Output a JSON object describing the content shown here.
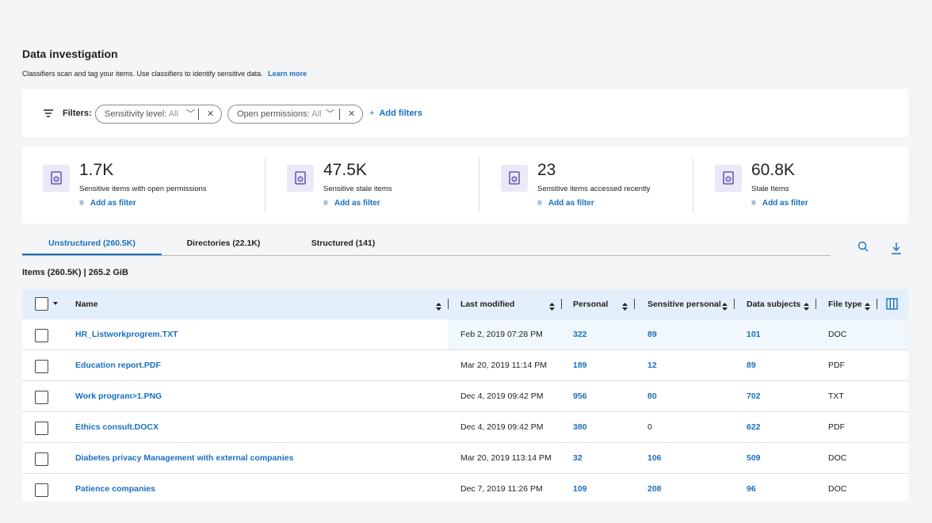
{
  "header": {
    "title": "Data investigation",
    "subtitle": "Classifiers scan and tag your items. Use classifiers to identify sensitive data.",
    "link": "Learn more"
  },
  "filters": {
    "label": "Filters:",
    "chips": [
      {
        "label": "Sensitivity level:",
        "value": "All"
      },
      {
        "label": "Open permissions:",
        "value": "All"
      }
    ],
    "add": "Add filters"
  },
  "stats": [
    {
      "value": "1.7K",
      "label": "Sensitive items with open permissions",
      "action": "Add as filter"
    },
    {
      "value": "47.5K",
      "label": "Sensitive stale items",
      "action": "Add as filter"
    },
    {
      "value": "23",
      "label": "Sensitive items accessed recently",
      "action": "Add as filter"
    },
    {
      "value": "60.8K",
      "label": "Stale Items",
      "action": "Add as filter"
    }
  ],
  "tabs": [
    "Unstructured (260.5K)",
    "Directories (22.1K)",
    "Structured (141)"
  ],
  "summary": "Items (260.5K)  |  265.2 GiB",
  "table": {
    "columns": [
      "Name",
      "Last modified",
      "Personal",
      "Sensitive personal",
      "Data subjects",
      "File type"
    ],
    "rows": [
      [
        "HR_Listworkprogrem.TXT",
        "Feb 2, 2019 07:28 PM",
        322,
        89,
        101,
        "DOC"
      ],
      [
        "Education report.PDF",
        "Mar 20, 2019 11:14 PM",
        189,
        12,
        89,
        "PDF"
      ],
      [
        "Work program>1.PNG",
        "Dec 4, 2019 09:42 PM",
        956,
        80,
        702,
        "TXT"
      ],
      [
        "Ethics consult.DOCX",
        "Dec 4, 2019 09:42 PM",
        380,
        0,
        622,
        "PDF"
      ],
      [
        "Diabetes privacy Management with external companies",
        "Mar 20, 2019 113:14 PM",
        32,
        106,
        509,
        "DOC"
      ],
      [
        "Patience companies",
        "Dec 7, 2019 11:26 PM",
        109,
        208,
        96,
        "DOC"
      ]
    ]
  }
}
